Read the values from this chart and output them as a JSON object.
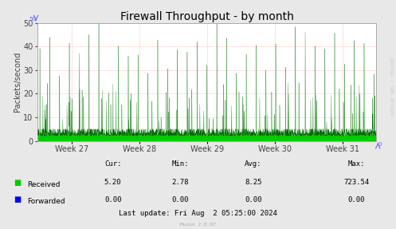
{
  "title": "Firewall Throughput - by month",
  "ylabel": "Packets/second",
  "ylim": [
    0,
    50
  ],
  "yticks": [
    0,
    10,
    20,
    30,
    40,
    50
  ],
  "week_labels": [
    "Week 27",
    "Week 28",
    "Week 29",
    "Week 30",
    "Week 31"
  ],
  "background_color": "#e8e8e8",
  "plot_bg_color": "#ffffff",
  "grid_color": "#ff9999",
  "fill_color_received": "#00cc00",
  "line_color_received": "#006600",
  "line_color_forwarded": "#0000ff",
  "stats_labels": [
    "Cur:",
    "Min:",
    "Avg:",
    "Max:"
  ],
  "stats_received": [
    5.2,
    2.78,
    8.25,
    723.54
  ],
  "stats_forwarded": [
    0.0,
    0.0,
    0.0,
    0.0
  ],
  "legend_received": "Received",
  "legend_forwarded": "Forwarded",
  "last_update": "Last update: Fri Aug  2 05:25:00 2024",
  "munin_version": "Munin 2.0.67",
  "rrdtool_label": "RRDTOOL / TOBI OETIKER",
  "title_fontsize": 10,
  "axis_fontsize": 7,
  "tick_fontsize": 7,
  "stats_fontsize": 6.5,
  "num_points": 3000,
  "base_mean": 3.5,
  "seed": 42
}
